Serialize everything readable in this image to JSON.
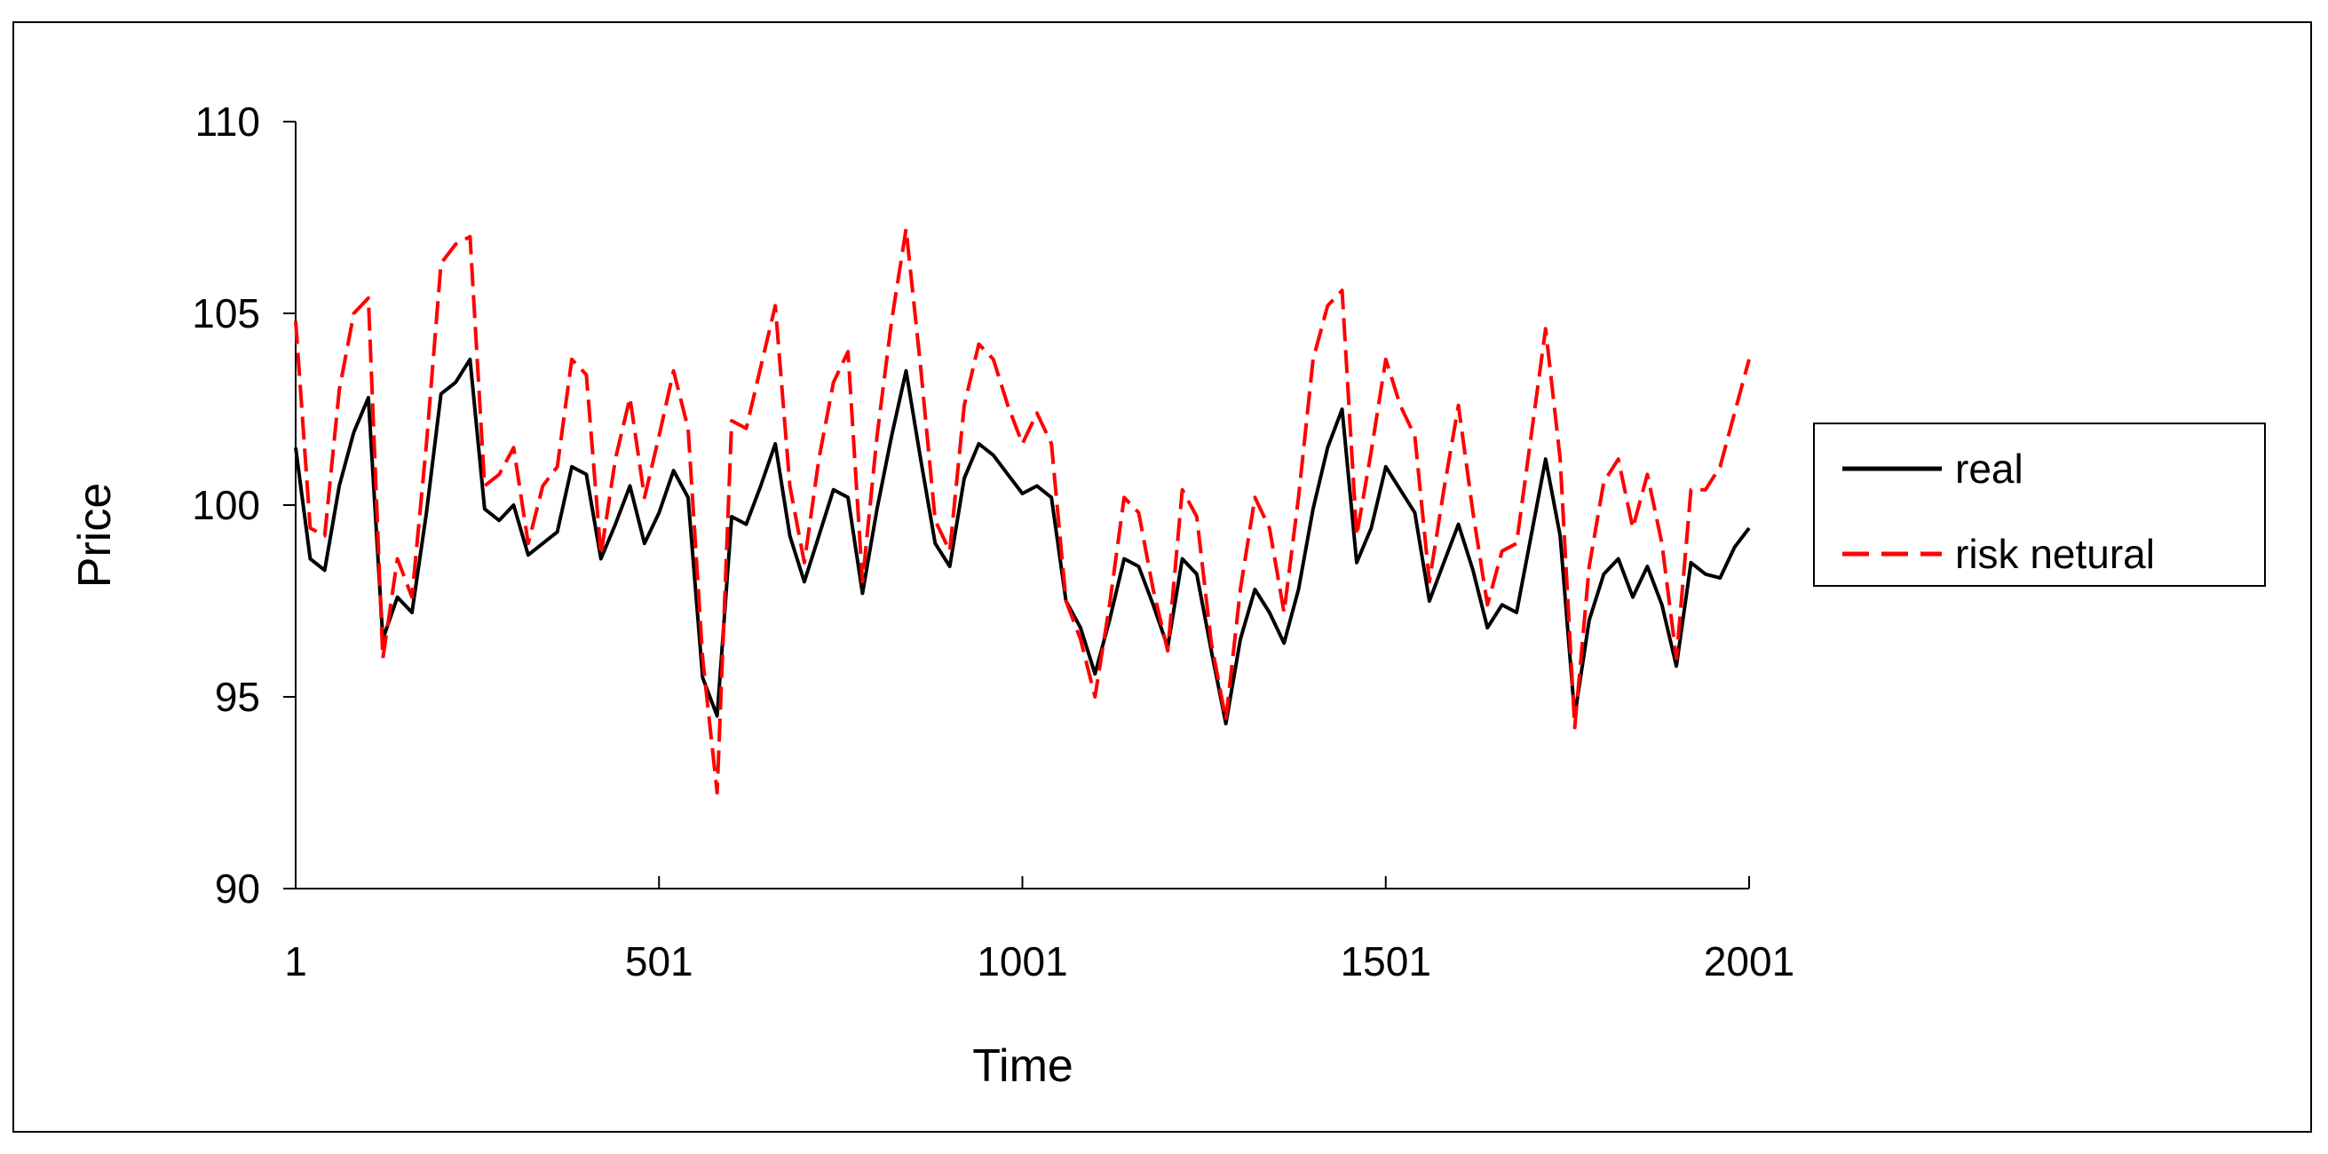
{
  "chart_data": {
    "type": "line",
    "title": "",
    "xlabel": "Time",
    "ylabel": "Price",
    "x_ticks": [
      "1",
      "501",
      "1001",
      "1501",
      "2001"
    ],
    "y_ticks": [
      "90",
      "95",
      "100",
      "105",
      "110"
    ],
    "xlim": [
      1,
      2001
    ],
    "ylim": [
      90,
      110
    ],
    "grid": false,
    "legend_position": "right",
    "series": [
      {
        "name": "real",
        "color": "#000000",
        "line_style": "solid",
        "x": [
          1,
          21,
          41,
          61,
          81,
          101,
          121,
          141,
          161,
          181,
          201,
          221,
          241,
          261,
          281,
          301,
          321,
          341,
          361,
          381,
          401,
          421,
          441,
          461,
          481,
          501,
          521,
          541,
          561,
          581,
          601,
          621,
          641,
          661,
          681,
          701,
          721,
          741,
          761,
          781,
          801,
          821,
          841,
          861,
          881,
          901,
          921,
          941,
          961,
          981,
          1001,
          1021,
          1041,
          1061,
          1081,
          1101,
          1121,
          1141,
          1161,
          1181,
          1201,
          1221,
          1241,
          1261,
          1281,
          1301,
          1321,
          1341,
          1361,
          1381,
          1401,
          1421,
          1441,
          1461,
          1481,
          1501,
          1521,
          1541,
          1561,
          1581,
          1601,
          1621,
          1641,
          1661,
          1681,
          1701,
          1721,
          1741,
          1761,
          1781,
          1801,
          1821,
          1841,
          1861,
          1881,
          1901,
          1921,
          1941,
          1961,
          1981,
          2001
        ],
        "y": [
          101.5,
          98.6,
          98.3,
          100.5,
          101.9,
          102.8,
          96.5,
          97.6,
          97.2,
          99.8,
          102.9,
          103.2,
          103.8,
          99.9,
          99.6,
          100.0,
          98.7,
          99.0,
          99.3,
          101.0,
          100.8,
          98.6,
          99.5,
          100.5,
          99.0,
          99.8,
          100.9,
          100.2,
          95.5,
          94.5,
          99.7,
          99.5,
          100.5,
          101.6,
          99.2,
          98.0,
          99.2,
          100.4,
          100.2,
          97.7,
          99.9,
          101.8,
          103.5,
          101.2,
          99.0,
          98.4,
          100.7,
          101.6,
          101.3,
          100.8,
          100.3,
          100.5,
          100.2,
          97.5,
          96.8,
          95.6,
          97.0,
          98.6,
          98.4,
          97.4,
          96.3,
          98.6,
          98.2,
          96.2,
          94.3,
          96.5,
          97.8,
          97.2,
          96.4,
          97.8,
          99.9,
          101.5,
          102.5,
          98.5,
          99.4,
          101.0,
          100.4,
          99.8,
          97.5,
          98.5,
          99.5,
          98.3,
          96.8,
          97.4,
          97.2,
          99.2,
          101.2,
          99.2,
          94.5,
          97.0,
          98.2,
          98.6,
          97.6,
          98.4,
          97.4,
          95.8,
          98.5,
          98.2,
          98.1,
          98.9,
          99.4
        ]
      },
      {
        "name": "risk netural",
        "color": "#ff0000",
        "line_style": "dashed",
        "x": [
          1,
          21,
          41,
          61,
          81,
          101,
          121,
          141,
          161,
          181,
          201,
          221,
          241,
          261,
          281,
          301,
          321,
          341,
          361,
          381,
          401,
          421,
          441,
          461,
          481,
          501,
          521,
          541,
          561,
          581,
          601,
          621,
          641,
          661,
          681,
          701,
          721,
          741,
          761,
          781,
          801,
          821,
          841,
          861,
          881,
          901,
          921,
          941,
          961,
          981,
          1001,
          1021,
          1041,
          1061,
          1081,
          1101,
          1121,
          1141,
          1161,
          1181,
          1201,
          1221,
          1241,
          1261,
          1281,
          1301,
          1321,
          1341,
          1361,
          1381,
          1401,
          1421,
          1441,
          1461,
          1481,
          1501,
          1521,
          1541,
          1561,
          1581,
          1601,
          1621,
          1641,
          1661,
          1681,
          1701,
          1721,
          1741,
          1761,
          1781,
          1801,
          1821,
          1841,
          1861,
          1881,
          1901,
          1921,
          1941,
          1961,
          1981,
          2001
        ],
        "y": [
          104.8,
          99.4,
          99.2,
          103.0,
          105.0,
          105.4,
          96.0,
          98.6,
          97.6,
          101.6,
          106.3,
          106.8,
          107.0,
          100.5,
          100.8,
          101.5,
          99.0,
          100.5,
          101.0,
          103.8,
          103.4,
          98.7,
          101.2,
          102.8,
          100.2,
          101.8,
          103.5,
          102.0,
          96.0,
          92.5,
          102.2,
          102.0,
          103.6,
          105.2,
          100.5,
          98.5,
          101.2,
          103.2,
          104.0,
          98.0,
          101.8,
          104.8,
          107.2,
          103.6,
          99.6,
          98.8,
          102.6,
          104.2,
          103.8,
          102.6,
          101.6,
          102.4,
          101.6,
          97.5,
          96.5,
          95.0,
          97.4,
          100.2,
          99.8,
          97.8,
          96.2,
          100.4,
          99.7,
          96.4,
          94.4,
          97.8,
          100.2,
          99.4,
          97.2,
          100.2,
          103.8,
          105.2,
          105.6,
          99.2,
          101.4,
          103.8,
          102.6,
          101.8,
          98.0,
          100.4,
          102.6,
          99.8,
          97.4,
          98.8,
          99.0,
          101.8,
          104.6,
          101.2,
          94.2,
          98.4,
          100.6,
          101.2,
          99.4,
          100.8,
          99.0,
          96.0,
          100.4,
          100.4,
          101.0,
          102.4,
          103.8
        ]
      }
    ]
  }
}
